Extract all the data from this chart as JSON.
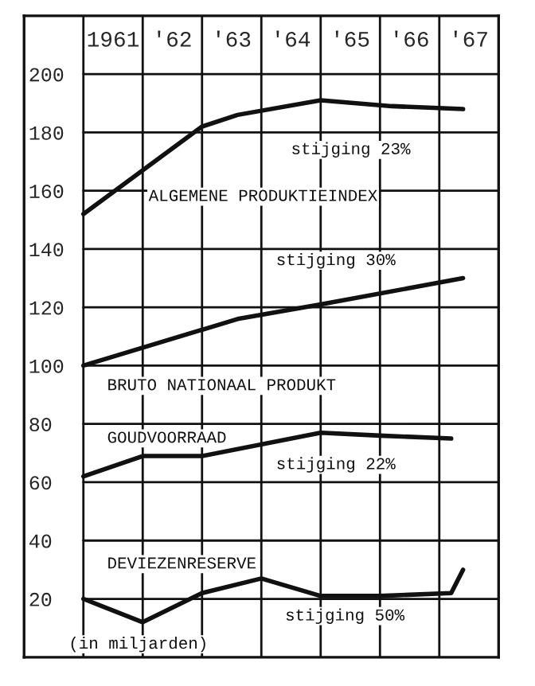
{
  "chart_data": {
    "type": "line",
    "series": [
      {
        "name": "ALGEMENE PRODUKTIEINDEX",
        "color": "#111111",
        "x": [
          1960.5,
          1962.5,
          1963.1,
          1964.5,
          1965.7,
          1966.9
        ],
        "values": [
          152,
          182,
          186,
          191,
          189,
          188
        ]
      },
      {
        "name": "BRUTO NATIONAAL PRODUKT",
        "color": "#111111",
        "x": [
          1960.5,
          1963.1,
          1964.5,
          1966.9
        ],
        "values": [
          100,
          116,
          121,
          130
        ]
      },
      {
        "name": "GOUDVOORRAAD",
        "color": "#111111",
        "x": [
          1960.5,
          1961.5,
          1962.5,
          1964.5,
          1965.5,
          1966.7
        ],
        "values": [
          62,
          69,
          69,
          77,
          76,
          75
        ]
      },
      {
        "name": "DEVIEZENRESERVE",
        "color": "#111111",
        "x": [
          1960.5,
          1961.5,
          1962.5,
          1963.5,
          1964.5,
          1965.5,
          1966.7,
          1966.9
        ],
        "values": [
          20,
          12,
          22,
          27,
          21,
          21,
          22,
          30
        ]
      }
    ],
    "xlim": [
      1959.5,
      1967.5
    ],
    "ylim": [
      0,
      220
    ],
    "xticks": [
      {
        "value": 1960.5,
        "label": null
      },
      {
        "value": 1961,
        "label": "1961"
      },
      {
        "value": 1961.5,
        "label": null
      },
      {
        "value": 1962,
        "label": "'62"
      },
      {
        "value": 1962.5,
        "label": null
      },
      {
        "value": 1963,
        "label": "'63"
      },
      {
        "value": 1963.5,
        "label": null
      },
      {
        "value": 1964,
        "label": "'64"
      },
      {
        "value": 1964.5,
        "label": null
      },
      {
        "value": 1965,
        "label": "'65"
      },
      {
        "value": 1965.5,
        "label": null
      },
      {
        "value": 1966,
        "label": "'66"
      },
      {
        "value": 1966.5,
        "label": null
      },
      {
        "value": 1967,
        "label": "'67"
      }
    ],
    "yticks": [
      20,
      40,
      60,
      80,
      100,
      120,
      140,
      160,
      180,
      200
    ],
    "grid": true,
    "annotations": [
      "stijging 23%",
      "stijging 30%",
      "stijging 22%",
      "stijging 50%",
      "(in miljarden)"
    ]
  }
}
